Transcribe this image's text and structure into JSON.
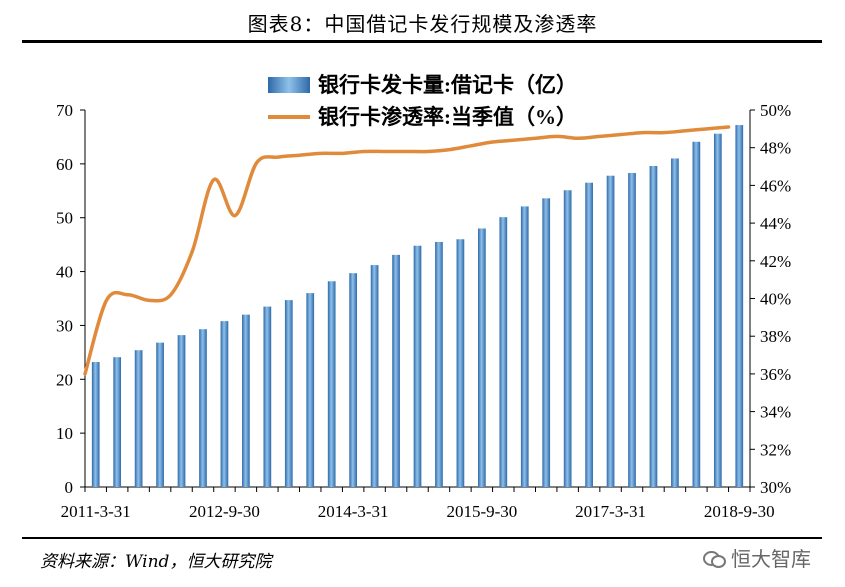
{
  "figure": {
    "title": "图表8：中国借记卡发行规模及渗透率",
    "source": "资料来源：Wind，恒大研究院",
    "watermark": "恒大智库"
  },
  "chart_data": {
    "type": "bar+line",
    "x": [
      "2011-3-31",
      "2011-6-30",
      "2011-9-30",
      "2011-12-31",
      "2012-3-31",
      "2012-6-30",
      "2012-9-30",
      "2012-12-31",
      "2013-3-31",
      "2013-6-30",
      "2013-9-30",
      "2013-12-31",
      "2014-3-31",
      "2014-6-30",
      "2014-9-30",
      "2014-12-31",
      "2015-3-31",
      "2015-6-30",
      "2015-9-30",
      "2015-12-31",
      "2016-3-31",
      "2016-6-30",
      "2016-9-30",
      "2016-12-31",
      "2017-3-31",
      "2017-6-30",
      "2017-9-30",
      "2017-12-31",
      "2018-3-31",
      "2018-6-30",
      "2018-9-30"
    ],
    "x_tick_labels": [
      "2011-3-31",
      "2012-9-30",
      "2014-3-31",
      "2015-9-30",
      "2017-3-31",
      "2018-9-30"
    ],
    "series": [
      {
        "name": "银行卡发卡量:借记卡（亿）",
        "kind": "bar",
        "axis": "left",
        "color": "#3f7fc0",
        "values": [
          23.2,
          24.1,
          25.4,
          26.8,
          28.2,
          29.3,
          30.8,
          32.0,
          33.5,
          34.7,
          36.0,
          38.2,
          39.7,
          41.2,
          43.1,
          44.8,
          45.5,
          46.0,
          48.0,
          50.1,
          52.1,
          53.6,
          55.1,
          56.5,
          57.8,
          58.3,
          59.6,
          61.0,
          64.1,
          65.6,
          67.2
        ]
      },
      {
        "name": "银行卡渗透率:当季值（%）",
        "kind": "line",
        "axis": "right",
        "color": "#e08b3c",
        "values": [
          36.0,
          39.9,
          40.2,
          39.9,
          40.2,
          42.5,
          46.3,
          44.4,
          47.2,
          47.5,
          47.6,
          47.7,
          47.7,
          47.8,
          47.8,
          47.8,
          47.8,
          47.9,
          48.1,
          48.3,
          48.4,
          48.5,
          48.6,
          48.5,
          48.6,
          48.7,
          48.8,
          48.8,
          48.9,
          49.0,
          49.1
        ]
      }
    ],
    "y_left": {
      "min": 0,
      "max": 70,
      "ticks": [
        0,
        10,
        20,
        30,
        40,
        50,
        60,
        70
      ]
    },
    "y_right": {
      "min": 30,
      "max": 50,
      "ticks": [
        "30%",
        "32%",
        "34%",
        "36%",
        "38%",
        "40%",
        "42%",
        "44%",
        "46%",
        "48%",
        "50%"
      ]
    },
    "legend_position": "top-center",
    "grid": false
  }
}
